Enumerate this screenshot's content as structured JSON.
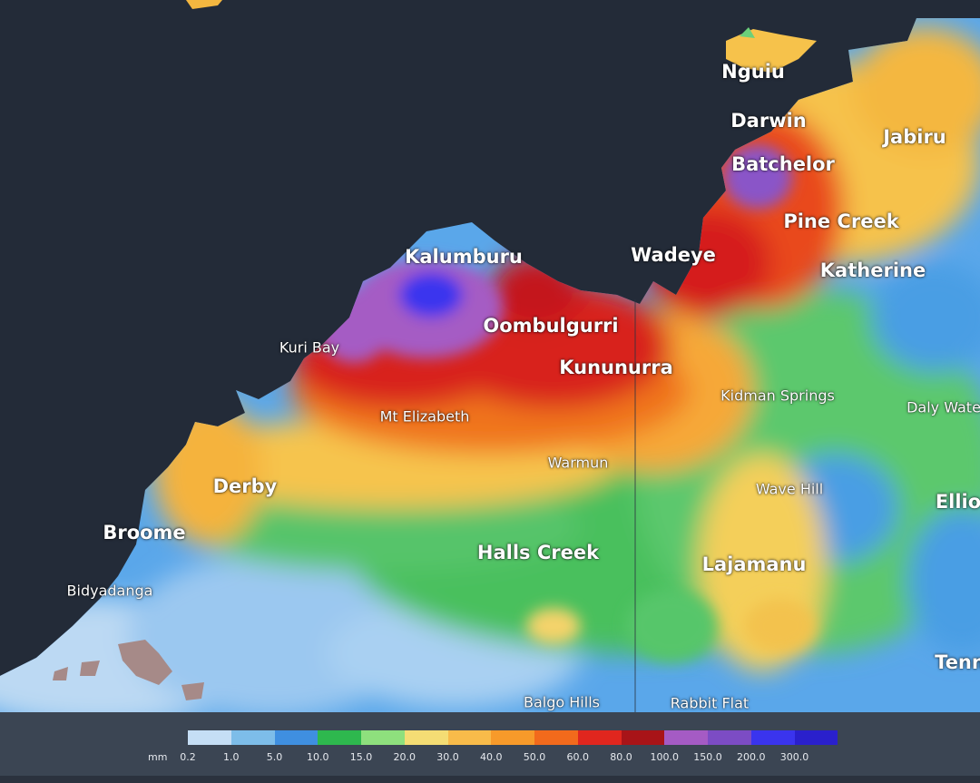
{
  "map": {
    "places_major": [
      {
        "id": "nguiu",
        "name": "Nguiu"
      },
      {
        "id": "darwin",
        "name": "Darwin"
      },
      {
        "id": "jabiru",
        "name": "Jabiru"
      },
      {
        "id": "batchelor",
        "name": "Batchelor"
      },
      {
        "id": "pine-creek",
        "name": "Pine Creek"
      },
      {
        "id": "kalumburu",
        "name": "Kalumburu"
      },
      {
        "id": "wadeye",
        "name": "Wadeye"
      },
      {
        "id": "katherine",
        "name": "Katherine"
      },
      {
        "id": "oombulgurri",
        "name": "Oombulgurri"
      },
      {
        "id": "kununurra",
        "name": "Kununurra"
      },
      {
        "id": "derby",
        "name": "Derby"
      },
      {
        "id": "broome",
        "name": "Broome"
      },
      {
        "id": "halls-creek",
        "name": "Halls Creek"
      },
      {
        "id": "lajamanu",
        "name": "Lajamanu"
      },
      {
        "id": "elliott",
        "name": "Ellio"
      },
      {
        "id": "tennant",
        "name": "Tenn"
      }
    ],
    "places_minor": [
      {
        "id": "kuri-bay",
        "name": "Kuri Bay"
      },
      {
        "id": "mt-elizabeth",
        "name": "Mt Elizabeth"
      },
      {
        "id": "kidman-springs",
        "name": "Kidman Springs"
      },
      {
        "id": "daly-waters",
        "name": "Daly Wate"
      },
      {
        "id": "warmun",
        "name": "Warmun"
      },
      {
        "id": "wave-hill",
        "name": "Wave Hill"
      },
      {
        "id": "bidyadanga",
        "name": "Bidyadanga"
      },
      {
        "id": "balgo-hills",
        "name": "Balgo Hills"
      },
      {
        "id": "rabbit-flat",
        "name": "Rabbit Flat"
      }
    ]
  },
  "legend": {
    "unit": "mm",
    "ticks": [
      "0.2",
      "1.0",
      "5.0",
      "10.0",
      "15.0",
      "20.0",
      "30.0",
      "40.0",
      "50.0",
      "60.0",
      "80.0",
      "100.0",
      "150.0",
      "200.0",
      "300.0"
    ],
    "colors": [
      "#c5def5",
      "#7dbde9",
      "#3f8fe0",
      "#2eb84e",
      "#8ee07d",
      "#f4dd74",
      "#f8bb4a",
      "#f79a2a",
      "#f26a1c",
      "#e0261e",
      "#a81418",
      "#a55bc4",
      "#7c4cc4",
      "#3a34ee",
      "#2a20cc"
    ]
  }
}
